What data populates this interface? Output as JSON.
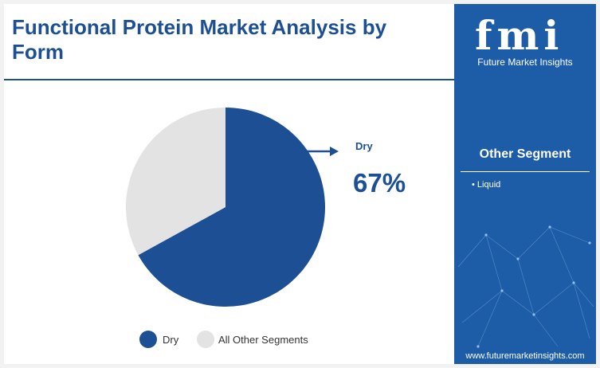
{
  "title": "Functional Protein Market Analysis by Form",
  "chart_data": {
    "type": "pie",
    "categories": [
      "Dry",
      "All Other Segments"
    ],
    "values": [
      67,
      33
    ],
    "colors": [
      "#1c4f94",
      "#e3e3e3"
    ],
    "callout": {
      "label": "Dry",
      "value": "67%"
    },
    "legend": {
      "placement": "bottom",
      "entries": [
        "Dry",
        "All Other Segments"
      ]
    }
  },
  "sidebar": {
    "logo_text": "fmi",
    "logo_subtitle": "Future Market Insights",
    "other_segment_title": "Other Segment",
    "other_segment_items": [
      "Liquid"
    ],
    "website": "www.futuremarketinsights.com"
  }
}
